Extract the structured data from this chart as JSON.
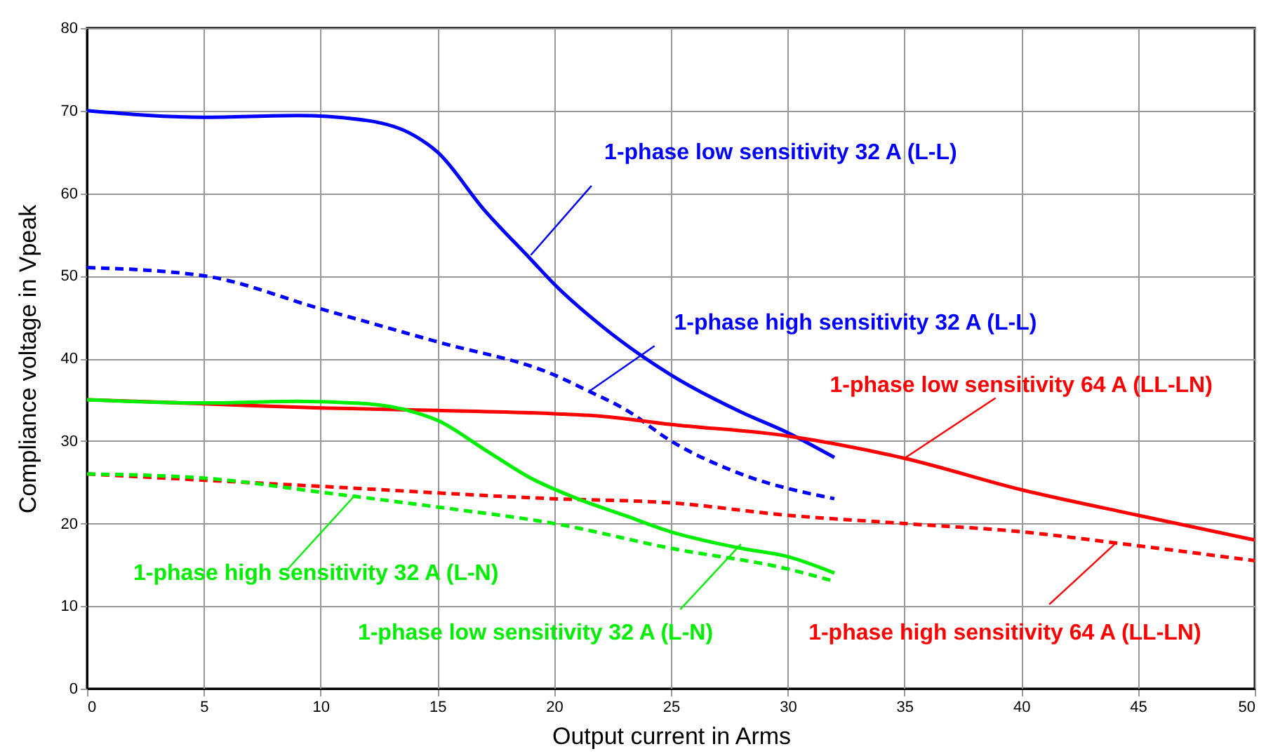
{
  "chart_data": {
    "type": "line",
    "xlabel": "Output current in Arms",
    "ylabel": "Compliance voltage in Vpeak",
    "xlim": [
      0,
      50
    ],
    "ylim": [
      0,
      80
    ],
    "xticks": [
      0,
      5,
      10,
      15,
      20,
      25,
      30,
      35,
      40,
      45,
      50
    ],
    "yticks": [
      0,
      10,
      20,
      30,
      40,
      50,
      60,
      70,
      80
    ],
    "grid": true,
    "series": [
      {
        "color": "#0000ff",
        "line_style": "solid",
        "x": [
          0,
          5,
          9,
          12,
          14,
          15,
          17,
          19,
          20,
          22,
          25,
          28,
          30,
          32
        ],
        "values": [
          70,
          69.2,
          69.4,
          68.8,
          67,
          65,
          58,
          52,
          49,
          44,
          38,
          33.5,
          31,
          28
        ]
      },
      {
        "color": "#0000ff",
        "line_style": "dashed",
        "x": [
          0,
          5,
          10,
          15,
          20,
          21.5,
          23,
          25,
          28,
          32
        ],
        "values": [
          51,
          50,
          46,
          42,
          38,
          36,
          33.9,
          30,
          26,
          23
        ]
      },
      {
        "color": "#ff0000",
        "line_style": "solid",
        "x": [
          0,
          5,
          10,
          15,
          20,
          22,
          25,
          30,
          35,
          40,
          45,
          50
        ],
        "values": [
          35,
          34.5,
          34,
          33.7,
          33.3,
          33,
          32,
          30.6,
          27.9,
          24.1,
          21,
          18
        ]
      },
      {
        "color": "#ff0000",
        "line_style": "dashed",
        "x": [
          0,
          10,
          20,
          25,
          30,
          35,
          40,
          45,
          50
        ],
        "values": [
          26,
          24.5,
          23,
          22.5,
          21,
          20,
          19,
          17.3,
          15.5
        ]
      },
      {
        "color": "#00ee00",
        "line_style": "solid",
        "x": [
          0,
          5,
          9,
          12,
          14,
          15,
          17,
          19,
          21,
          23,
          25,
          28,
          30,
          32
        ],
        "values": [
          35,
          34.6,
          34.8,
          34.5,
          33.5,
          32.5,
          29,
          25.5,
          23,
          21,
          19,
          17,
          16,
          14
        ]
      },
      {
        "color": "#00ee00",
        "line_style": "dashed",
        "x": [
          0,
          5,
          10,
          15,
          20,
          25,
          30,
          32
        ],
        "values": [
          26,
          25.5,
          23.8,
          22,
          20,
          17,
          14.5,
          13
        ]
      }
    ],
    "annotations": [
      {
        "text": "1-phase low sensitivity 32 A (L-L)",
        "x": 19,
        "y": 52.5
      },
      {
        "text": "1-phase high sensitivity 32 A (L-L)",
        "x": 21.5,
        "y": 36
      },
      {
        "text": "1-phase low sensitivity 64 A (LL-LN)",
        "x": 35,
        "y": 27.9
      },
      {
        "text": "1-phase high sensitivity 64 A (LL-LN)",
        "x": 44,
        "y": 17.5
      },
      {
        "text": "1-phase low sensitivity 32 A (L-N)",
        "x": 28,
        "y": 17.5
      },
      {
        "text": "1-phase high sensitivity 32 A (L-N)",
        "x": 11.5,
        "y": 23.5
      }
    ]
  }
}
